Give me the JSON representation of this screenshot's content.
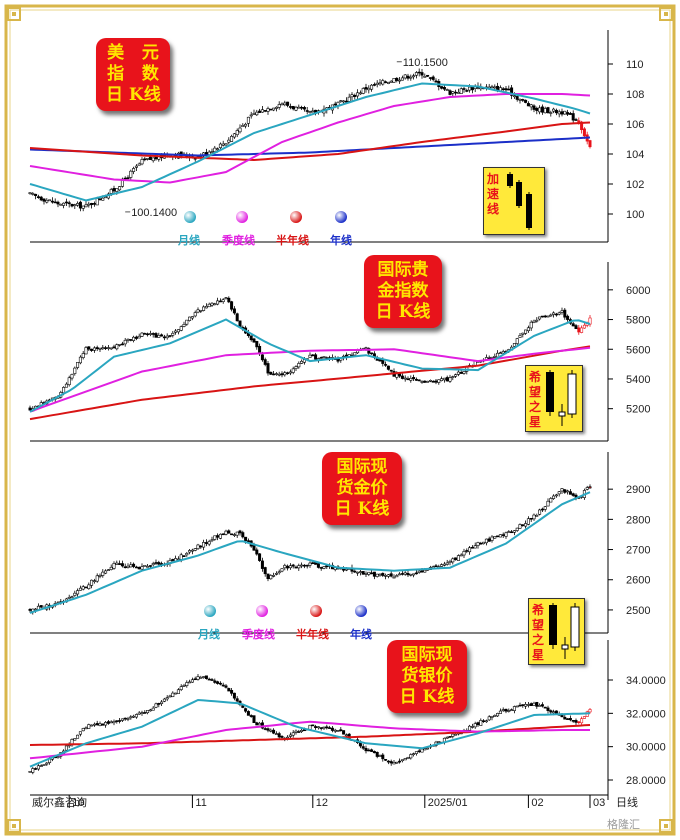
{
  "chart_data": [
    {
      "type": "candlestick",
      "title_lines": [
        "美   元",
        "指   数",
        "日 K线"
      ],
      "yticks": [
        "110",
        "108",
        "106",
        "104",
        "102",
        "100"
      ],
      "ylim": [
        98.8,
        111.6
      ],
      "annotations": {
        "high": "110.1500",
        "low": "100.1400"
      },
      "inset_label": [
        "加",
        "速",
        "线"
      ],
      "legend": [
        "月线",
        "季度线",
        "半年线",
        "年线"
      ],
      "close_anchors": [
        [
          0,
          101.3
        ],
        [
          10,
          100.7
        ],
        [
          20,
          100.5
        ],
        [
          30,
          101.6
        ],
        [
          40,
          103.5
        ],
        [
          50,
          104.0
        ],
        [
          60,
          103.8
        ],
        [
          70,
          104.8
        ],
        [
          80,
          106.7
        ],
        [
          90,
          107.4
        ],
        [
          100,
          106.7
        ],
        [
          110,
          107.3
        ],
        [
          120,
          108.4
        ],
        [
          130,
          109.0
        ],
        [
          140,
          109.4
        ],
        [
          150,
          108.1
        ],
        [
          160,
          108.5
        ],
        [
          170,
          108.3
        ],
        [
          180,
          107.0
        ],
        [
          190,
          106.8
        ],
        [
          196,
          106.2
        ],
        [
          200,
          104.4
        ]
      ],
      "ma_month": [
        [
          0,
          102.0
        ],
        [
          20,
          100.9
        ],
        [
          40,
          101.8
        ],
        [
          60,
          103.5
        ],
        [
          80,
          105.4
        ],
        [
          100,
          106.6
        ],
        [
          120,
          107.8
        ],
        [
          140,
          108.7
        ],
        [
          160,
          108.5
        ],
        [
          180,
          107.7
        ],
        [
          195,
          107.0
        ],
        [
          200,
          106.7
        ]
      ],
      "ma_quarter": [
        [
          0,
          103.2
        ],
        [
          30,
          102.3
        ],
        [
          50,
          102.1
        ],
        [
          70,
          102.8
        ],
        [
          90,
          104.8
        ],
        [
          110,
          106.1
        ],
        [
          130,
          107.2
        ],
        [
          150,
          107.8
        ],
        [
          170,
          108.0
        ],
        [
          190,
          108.0
        ],
        [
          200,
          107.9
        ]
      ],
      "ma_half": [
        [
          0,
          104.4
        ],
        [
          40,
          103.9
        ],
        [
          80,
          103.6
        ],
        [
          110,
          104.0
        ],
        [
          140,
          104.8
        ],
        [
          170,
          105.5
        ],
        [
          190,
          106.0
        ],
        [
          200,
          106.1
        ]
      ],
      "ma_year": [
        [
          0,
          104.3
        ],
        [
          60,
          103.9
        ],
        [
          100,
          104.1
        ],
        [
          140,
          104.5
        ],
        [
          170,
          104.8
        ],
        [
          200,
          105.1
        ]
      ]
    },
    {
      "type": "candlestick",
      "title_lines": [
        "国际贵",
        "金指数",
        "日 K线"
      ],
      "yticks": [
        "6000",
        "5800",
        "5600",
        "5400",
        "5200"
      ],
      "ylim": [
        5070,
        6120
      ],
      "inset_label": [
        "希",
        "望",
        "之",
        "星"
      ],
      "close_anchors": [
        [
          0,
          5200
        ],
        [
          10,
          5280
        ],
        [
          20,
          5600
        ],
        [
          30,
          5620
        ],
        [
          40,
          5700
        ],
        [
          50,
          5680
        ],
        [
          60,
          5860
        ],
        [
          70,
          5950
        ],
        [
          75,
          5760
        ],
        [
          80,
          5650
        ],
        [
          85,
          5450
        ],
        [
          90,
          5420
        ],
        [
          100,
          5550
        ],
        [
          110,
          5530
        ],
        [
          120,
          5600
        ],
        [
          130,
          5430
        ],
        [
          140,
          5380
        ],
        [
          150,
          5400
        ],
        [
          160,
          5520
        ],
        [
          170,
          5580
        ],
        [
          180,
          5800
        ],
        [
          190,
          5850
        ],
        [
          196,
          5720
        ],
        [
          200,
          5800
        ]
      ],
      "ma_month": [
        [
          0,
          5180
        ],
        [
          15,
          5330
        ],
        [
          30,
          5550
        ],
        [
          50,
          5640
        ],
        [
          70,
          5800
        ],
        [
          85,
          5640
        ],
        [
          100,
          5520
        ],
        [
          120,
          5560
        ],
        [
          140,
          5470
        ],
        [
          160,
          5460
        ],
        [
          180,
          5690
        ],
        [
          195,
          5800
        ],
        [
          200,
          5770
        ]
      ],
      "ma_quarter": [
        [
          0,
          5180
        ],
        [
          40,
          5450
        ],
        [
          70,
          5560
        ],
        [
          100,
          5590
        ],
        [
          130,
          5600
        ],
        [
          160,
          5520
        ],
        [
          180,
          5570
        ],
        [
          200,
          5610
        ]
      ],
      "ma_half": [
        [
          0,
          5130
        ],
        [
          40,
          5260
        ],
        [
          80,
          5350
        ],
        [
          120,
          5420
        ],
        [
          160,
          5490
        ],
        [
          190,
          5590
        ],
        [
          200,
          5620
        ]
      ]
    },
    {
      "type": "candlestick",
      "title_lines": [
        "国际现",
        "货金价",
        "日 K线"
      ],
      "yticks": [
        "2900",
        "2800",
        "2700",
        "2600",
        "2500"
      ],
      "ylim": [
        2460,
        2990
      ],
      "legend": [
        "月线",
        "季度线",
        "半年线",
        "年线"
      ],
      "close_anchors": [
        [
          0,
          2500
        ],
        [
          10,
          2520
        ],
        [
          20,
          2580
        ],
        [
          30,
          2650
        ],
        [
          40,
          2640
        ],
        [
          50,
          2660
        ],
        [
          60,
          2710
        ],
        [
          70,
          2760
        ],
        [
          75,
          2750
        ],
        [
          80,
          2700
        ],
        [
          85,
          2600
        ],
        [
          90,
          2640
        ],
        [
          100,
          2650
        ],
        [
          110,
          2640
        ],
        [
          120,
          2620
        ],
        [
          130,
          2610
        ],
        [
          140,
          2630
        ],
        [
          150,
          2660
        ],
        [
          160,
          2720
        ],
        [
          170,
          2750
        ],
        [
          180,
          2810
        ],
        [
          190,
          2900
        ],
        [
          196,
          2870
        ],
        [
          200,
          2910
        ]
      ],
      "ma_month": [
        [
          0,
          2490
        ],
        [
          20,
          2550
        ],
        [
          40,
          2630
        ],
        [
          60,
          2680
        ],
        [
          75,
          2730
        ],
        [
          90,
          2690
        ],
        [
          110,
          2640
        ],
        [
          130,
          2630
        ],
        [
          150,
          2640
        ],
        [
          170,
          2720
        ],
        [
          190,
          2850
        ],
        [
          200,
          2890
        ]
      ]
    },
    {
      "type": "candlestick",
      "title_lines": [
        "国际现",
        "货银价",
        "日 K线"
      ],
      "yticks": [
        "34.0000",
        "32.0000",
        "30.0000",
        "28.0000"
      ],
      "ylim": [
        27.4,
        35.8
      ],
      "inset_label": [
        "希",
        "望",
        "之",
        "星"
      ],
      "close_anchors": [
        [
          0,
          28.5
        ],
        [
          10,
          29.5
        ],
        [
          20,
          31.2
        ],
        [
          30,
          31.5
        ],
        [
          40,
          32.0
        ],
        [
          50,
          33.0
        ],
        [
          60,
          34.3
        ],
        [
          70,
          33.5
        ],
        [
          80,
          31.5
        ],
        [
          90,
          30.5
        ],
        [
          100,
          31.2
        ],
        [
          110,
          31.0
        ],
        [
          120,
          29.8
        ],
        [
          130,
          29.0
        ],
        [
          140,
          29.8
        ],
        [
          150,
          30.6
        ],
        [
          160,
          31.4
        ],
        [
          170,
          32.2
        ],
        [
          180,
          32.6
        ],
        [
          190,
          31.8
        ],
        [
          196,
          31.4
        ],
        [
          200,
          32.3
        ]
      ],
      "ma_month": [
        [
          0,
          28.8
        ],
        [
          20,
          30.2
        ],
        [
          40,
          31.2
        ],
        [
          60,
          32.8
        ],
        [
          75,
          32.6
        ],
        [
          95,
          31.2
        ],
        [
          120,
          30.2
        ],
        [
          140,
          29.9
        ],
        [
          160,
          30.8
        ],
        [
          180,
          31.9
        ],
        [
          200,
          32.0
        ]
      ],
      "ma_quarter": [
        [
          0,
          29.3
        ],
        [
          40,
          30.0
        ],
        [
          70,
          31.0
        ],
        [
          100,
          31.5
        ],
        [
          130,
          31.1
        ],
        [
          160,
          30.9
        ],
        [
          190,
          31.0
        ],
        [
          200,
          31.0
        ]
      ],
      "ma_half": [
        [
          0,
          30.1
        ],
        [
          40,
          30.2
        ],
        [
          80,
          30.4
        ],
        [
          120,
          30.6
        ],
        [
          160,
          30.9
        ],
        [
          190,
          31.2
        ],
        [
          200,
          31.3
        ]
      ]
    }
  ],
  "x_axis": {
    "labels": [
      "10",
      "11",
      "12",
      "2025/01",
      "02",
      "03"
    ],
    "label_index": [
      14,
      58,
      101,
      141,
      178,
      200
    ],
    "source": "威尔鑫咨询",
    "period": "日线",
    "watermark": "格隆汇"
  },
  "colors": {
    "ma_month": "#2aa6c0",
    "ma_quarter": "#e020e0",
    "ma_half": "#d81414",
    "ma_year": "#1b2fc8",
    "badge": "#e8131b",
    "badge_text": "#ffe600",
    "frame_gold": "#d8b64a"
  }
}
